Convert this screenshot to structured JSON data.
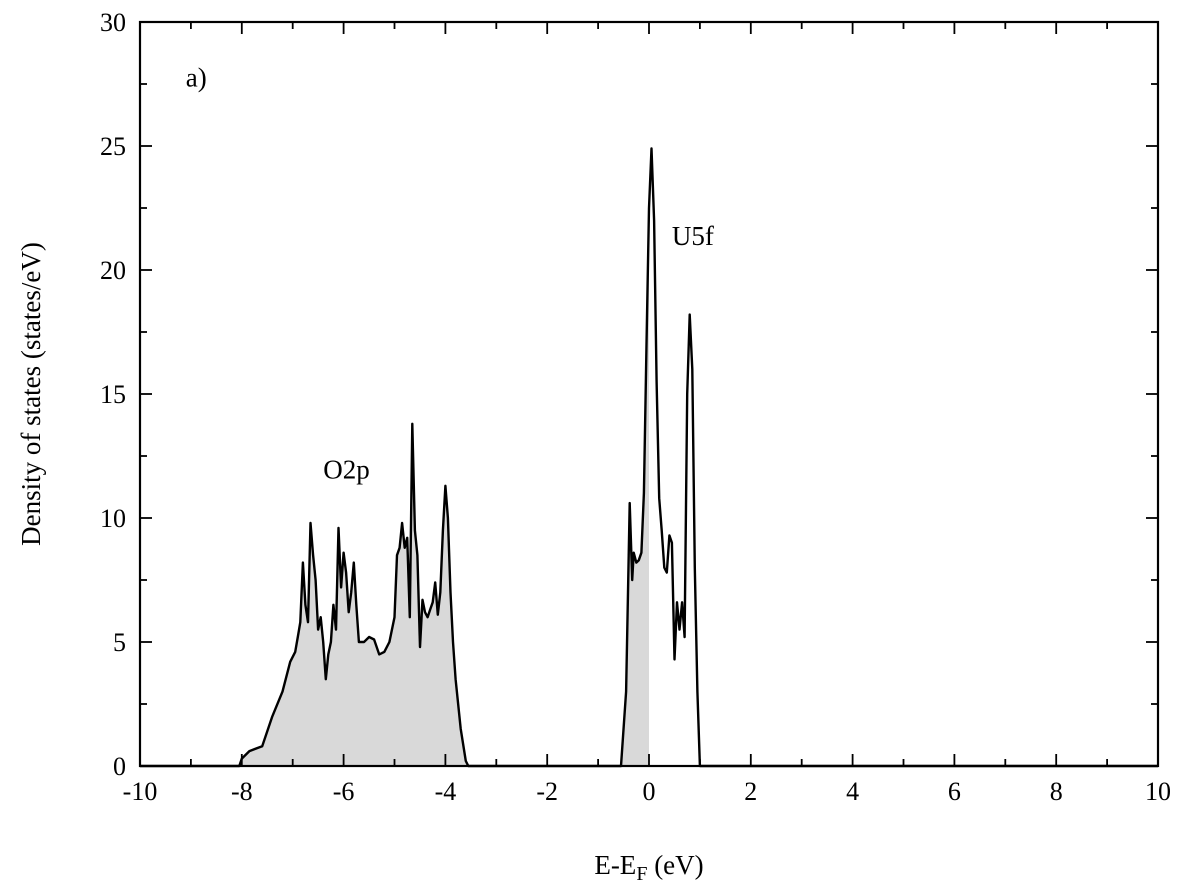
{
  "chart_data": {
    "type": "area",
    "title": "",
    "xlabel": "E-E",
    "xlabel_sub": "F",
    "xlabel_unit": " (eV)",
    "ylabel": "Density of states (states/eV)",
    "xlim": [
      -10,
      10
    ],
    "ylim": [
      0,
      30
    ],
    "x_ticks": [
      -10,
      -8,
      -6,
      -4,
      -2,
      0,
      2,
      4,
      6,
      8,
      10
    ],
    "x_tick_labels": [
      "-10",
      "-8",
      "-6",
      "-4",
      "-2",
      "0",
      "2",
      "4",
      "6",
      "8",
      "10"
    ],
    "y_ticks": [
      0,
      5,
      10,
      15,
      20,
      25,
      30
    ],
    "y_tick_labels": [
      "0",
      "5",
      "10",
      "15",
      "20",
      "25",
      "30"
    ],
    "grid": false,
    "fill_color": "#d9d9d9",
    "line_color": "#000000",
    "fill_below_x": 0,
    "annotations": [
      {
        "text": "a)",
        "x": -9.1,
        "y": 27.4
      },
      {
        "text": "O2p",
        "x": -6.4,
        "y": 11.6
      },
      {
        "text": "U5f",
        "x": 0.45,
        "y": 21.0
      }
    ],
    "series": [
      {
        "x": [
          -10,
          -8.05,
          -8.0,
          -7.85,
          -7.6,
          -7.4,
          -7.2,
          -7.05,
          -6.95,
          -6.9,
          -6.85,
          -6.8,
          -6.75,
          -6.7,
          -6.65,
          -6.6,
          -6.55,
          -6.5,
          -6.45,
          -6.4,
          -6.35,
          -6.3,
          -6.25,
          -6.2,
          -6.15,
          -6.1,
          -6.05,
          -6.0,
          -5.95,
          -5.9,
          -5.85,
          -5.8,
          -5.75,
          -5.7,
          -5.6,
          -5.5,
          -5.4,
          -5.3,
          -5.2,
          -5.1,
          -5.0,
          -4.95,
          -4.9,
          -4.85,
          -4.8,
          -4.75,
          -4.7,
          -4.65,
          -4.6,
          -4.55,
          -4.5,
          -4.45,
          -4.4,
          -4.35,
          -4.3,
          -4.25,
          -4.2,
          -4.15,
          -4.1,
          -4.05,
          -4.0,
          -3.95,
          -3.9,
          -3.85,
          -3.8,
          -3.7,
          -3.6,
          -3.55,
          -0.55,
          -0.45,
          -0.38,
          -0.33,
          -0.3,
          -0.25,
          -0.2,
          -0.15,
          -0.1,
          -0.05,
          0.0,
          0.05,
          0.1,
          0.15,
          0.2,
          0.25,
          0.3,
          0.35,
          0.4,
          0.45,
          0.5,
          0.55,
          0.6,
          0.65,
          0.7,
          0.75,
          0.8,
          0.85,
          0.9,
          0.95,
          1.0,
          10
        ],
        "y": [
          0,
          0,
          0.3,
          0.6,
          0.8,
          2.0,
          3.0,
          4.2,
          4.6,
          5.2,
          5.8,
          8.2,
          6.5,
          5.8,
          9.8,
          8.5,
          7.5,
          5.5,
          6.0,
          5.0,
          3.5,
          4.5,
          5.0,
          6.5,
          5.5,
          9.6,
          7.2,
          8.6,
          7.8,
          6.2,
          7.0,
          8.2,
          6.5,
          5.0,
          5.0,
          5.2,
          5.1,
          4.5,
          4.6,
          5.0,
          6.0,
          8.5,
          8.8,
          9.8,
          8.8,
          9.2,
          6.0,
          13.8,
          9.5,
          8.5,
          4.8,
          6.7,
          6.2,
          6.0,
          6.3,
          6.6,
          7.4,
          6.1,
          7.0,
          9.5,
          11.3,
          10.0,
          7.0,
          5.0,
          3.5,
          1.5,
          0.2,
          0,
          0,
          3.0,
          10.6,
          7.5,
          8.6,
          8.2,
          8.3,
          8.6,
          11.0,
          17.0,
          22.5,
          24.9,
          22.0,
          15.5,
          10.8,
          9.5,
          8.0,
          7.8,
          9.3,
          9.0,
          4.3,
          6.6,
          5.5,
          6.6,
          5.2,
          15.0,
          18.2,
          16.0,
          8.0,
          3.0,
          0.0,
          0
        ]
      }
    ]
  }
}
